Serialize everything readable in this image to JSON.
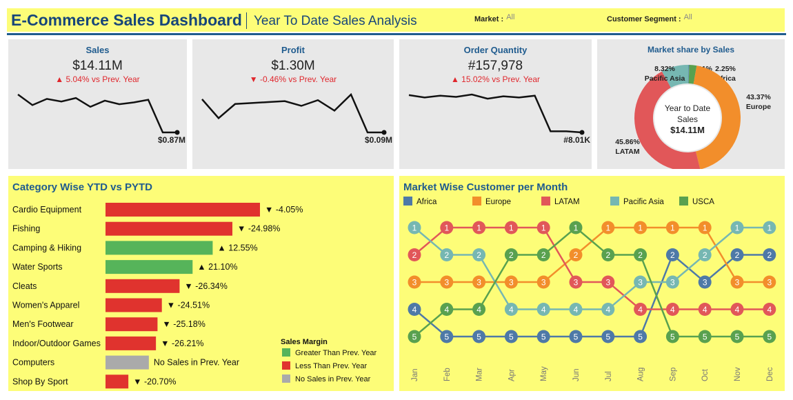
{
  "header": {
    "title": "E-Commerce Sales Dashboard",
    "subtitle": "Year To Date Sales Analysis",
    "filters": [
      {
        "label": "Market :",
        "value": "All"
      },
      {
        "label": "Customer Segment :",
        "value": "All"
      }
    ]
  },
  "kpis": [
    {
      "label": "Sales",
      "value": "$14.11M",
      "change": "▲ 5.04% vs Prev. Year",
      "end_label": "$0.87M",
      "trend": [
        1.3,
        1.18,
        1.25,
        1.22,
        1.26,
        1.16,
        1.23,
        1.19,
        1.21,
        1.24,
        0.87,
        0.87
      ]
    },
    {
      "label": "Profit",
      "value": "$1.30M",
      "change": "▼ -0.46% vs Prev. Year",
      "end_label": "$0.09M",
      "trend": [
        0.125,
        0.105,
        0.12,
        0.121,
        0.122,
        0.123,
        0.118,
        0.124,
        0.113,
        0.13,
        0.09,
        0.09
      ]
    },
    {
      "label": "Order Quantity",
      "value": "#157,978",
      "change": "▲ 15.02% vs Prev. Year",
      "end_label": "#8.01K",
      "trend": [
        14.2,
        13.8,
        14.1,
        13.9,
        14.3,
        13.6,
        14.0,
        13.8,
        14.1,
        8.2,
        8.2,
        8.01
      ]
    }
  ],
  "market_share": {
    "title": "Market share by Sales",
    "center_text": [
      "Year to Date",
      "Sales",
      "$14.11M"
    ],
    "slices": [
      {
        "name": "USCA",
        "share": 0.21,
        "label": [
          "0.21%",
          "USCA"
        ],
        "color": "#4e79a7"
      },
      {
        "name": "Africa",
        "share": 2.25,
        "label": [
          "2.25%",
          "Africa"
        ],
        "color": "#59a14f"
      },
      {
        "name": "Europe",
        "share": 43.37,
        "label": [
          "43.37%",
          "Europe"
        ],
        "color": "#f28e2b"
      },
      {
        "name": "LATAM",
        "share": 45.86,
        "label": [
          "45.86%",
          "LATAM"
        ],
        "color": "#e15759"
      },
      {
        "name": "Pacific Asia",
        "share": 8.32,
        "label": [
          "8.32%",
          "Pacific Asia"
        ],
        "color": "#76b7b2"
      }
    ]
  },
  "category": {
    "title": "Category Wise YTD vs PYTD",
    "legend_title": "Sales Margin",
    "legend": [
      {
        "label": "Greater Than Prev. Year",
        "color": "#56b45a"
      },
      {
        "label": "Less Than Prev. Year",
        "color": "#e0332e"
      },
      {
        "label": "No Sales in Prev. Year",
        "color": "#aaaaaa"
      }
    ]
  },
  "chart_data": [
    {
      "type": "bar",
      "title": "Category Wise YTD vs PYTD",
      "categories": [
        "Cardio Equipment",
        "Fishing",
        "Camping & Hiking",
        "Water Sports",
        "Cleats",
        "Women's Apparel",
        "Men's Footwear",
        "Indoor/Outdoor Games",
        "Computers",
        "Shop By Sport"
      ],
      "values": [
        3.92,
        3.22,
        2.72,
        2.21,
        1.88,
        1.43,
        1.32,
        1.28,
        1.1,
        0.58
      ],
      "labels": [
        "▼ -4.05%",
        "▼ -24.98%",
        "▲ 12.55%",
        "▲ 21.10%",
        "▼ -26.34%",
        "▼ -24.51%",
        "▼ -25.18%",
        "▼ -26.21%",
        "No Sales in Prev. Year",
        "▼ -20.70%"
      ],
      "status": [
        "less",
        "less",
        "greater",
        "greater",
        "less",
        "less",
        "less",
        "less",
        "none",
        "less"
      ]
    },
    {
      "type": "line",
      "title": "Market Wise Customer per Month",
      "x": [
        "Jan",
        "Feb",
        "Mar",
        "Apr",
        "May",
        "Jun",
        "Jul",
        "Aug",
        "Sep",
        "Oct",
        "Nov",
        "Dec"
      ],
      "series": [
        {
          "name": "Africa",
          "color": "#4e79a7",
          "ranks": [
            4,
            5,
            5,
            5,
            5,
            5,
            5,
            5,
            2,
            3,
            2,
            2
          ]
        },
        {
          "name": "Europe",
          "color": "#f28e2b",
          "ranks": [
            3,
            3,
            3,
            3,
            3,
            2,
            1,
            1,
            1,
            1,
            3,
            3
          ]
        },
        {
          "name": "LATAM",
          "color": "#e15759",
          "ranks": [
            2,
            1,
            1,
            1,
            1,
            3,
            3,
            4,
            4,
            4,
            4,
            4
          ]
        },
        {
          "name": "Pacific Asia",
          "color": "#76b7b2",
          "ranks": [
            1,
            2,
            2,
            4,
            4,
            4,
            4,
            3,
            3,
            2,
            1,
            1
          ]
        },
        {
          "name": "USCA",
          "color": "#59a14f",
          "ranks": [
            5,
            4,
            4,
            2,
            2,
            1,
            2,
            2,
            5,
            5,
            5,
            5
          ]
        }
      ],
      "ylim": [
        1,
        5
      ]
    }
  ]
}
